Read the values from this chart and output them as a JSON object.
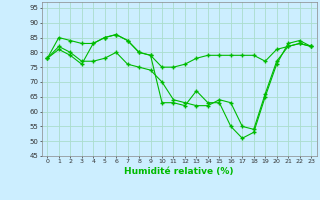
{
  "title": "",
  "xlabel": "Humidité relative (%)",
  "ylabel": "",
  "background_color": "#cceeff",
  "grid_color": "#aaddcc",
  "line_color": "#00bb00",
  "ylim": [
    45,
    97
  ],
  "xlim": [
    -0.5,
    23.5
  ],
  "yticks": [
    45,
    50,
    55,
    60,
    65,
    70,
    75,
    80,
    85,
    90,
    95
  ],
  "xticks": [
    0,
    1,
    2,
    3,
    4,
    5,
    6,
    7,
    8,
    9,
    10,
    11,
    12,
    13,
    14,
    15,
    16,
    17,
    18,
    19,
    20,
    21,
    22,
    23
  ],
  "series": [
    [
      78,
      81,
      79,
      76,
      83,
      85,
      86,
      84,
      80,
      79,
      75,
      75,
      76,
      78,
      79,
      79,
      79,
      79,
      79,
      77,
      81,
      82,
      83,
      82
    ],
    [
      78,
      85,
      84,
      83,
      83,
      85,
      86,
      84,
      80,
      79,
      63,
      63,
      62,
      67,
      63,
      63,
      55,
      51,
      53,
      65,
      76,
      83,
      84,
      82
    ],
    [
      78,
      82,
      80,
      77,
      77,
      78,
      80,
      76,
      75,
      74,
      70,
      64,
      63,
      62,
      62,
      64,
      63,
      55,
      54,
      66,
      77,
      82,
      83,
      82
    ]
  ]
}
